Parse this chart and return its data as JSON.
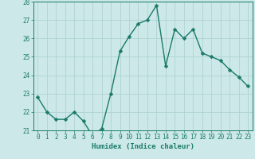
{
  "x": [
    0,
    1,
    2,
    3,
    4,
    5,
    6,
    7,
    8,
    9,
    10,
    11,
    12,
    13,
    14,
    15,
    16,
    17,
    18,
    19,
    20,
    21,
    22,
    23
  ],
  "y": [
    22.8,
    22.0,
    21.6,
    21.6,
    22.0,
    21.5,
    20.7,
    21.1,
    23.0,
    25.3,
    26.1,
    26.8,
    27.0,
    27.8,
    24.5,
    26.5,
    26.0,
    26.5,
    25.2,
    25.0,
    24.8,
    24.3,
    23.9,
    23.4
  ],
  "line_color": "#1a7a6a",
  "marker_color": "#1a7a6a",
  "bg_color": "#cce8e8",
  "grid_color": "#aacfcf",
  "axis_color": "#1a7a6a",
  "text_color": "#1a7a6a",
  "xlabel": "Humidex (Indice chaleur)",
  "ylim": [
    21,
    28
  ],
  "xlim_min": -0.5,
  "xlim_max": 23.5,
  "yticks": [
    21,
    22,
    23,
    24,
    25,
    26,
    27,
    28
  ],
  "xticks": [
    0,
    1,
    2,
    3,
    4,
    5,
    6,
    7,
    8,
    9,
    10,
    11,
    12,
    13,
    14,
    15,
    16,
    17,
    18,
    19,
    20,
    21,
    22,
    23
  ],
  "xlabel_fontsize": 6.5,
  "tick_fontsize": 5.5,
  "line_width": 1.0,
  "marker_size": 2.5
}
